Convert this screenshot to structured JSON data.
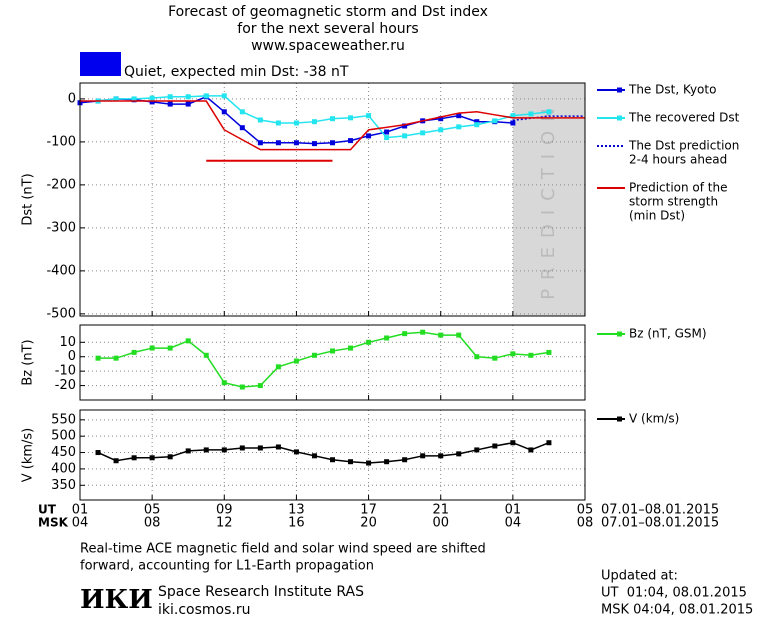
{
  "header": {
    "title": [
      "Forecast of geomagnetic storm and Dst index",
      "for the next several hours",
      "www.spaceweather.ru"
    ]
  },
  "status": {
    "text": "Quiet, expected min Dst: -38 nT",
    "color": "#0000ee"
  },
  "chart_data": [
    {
      "type": "line",
      "ylabel": "Dst (nT)",
      "xlim": [
        0,
        28
      ],
      "ylim": [
        -505,
        37
      ],
      "xticks": [
        {
          "value": 0,
          "label": "01"
        },
        {
          "value": 4,
          "label": "05"
        },
        {
          "value": 8,
          "label": "09"
        },
        {
          "value": 12,
          "label": "13"
        },
        {
          "value": 16,
          "label": "17"
        },
        {
          "value": 20,
          "label": "21"
        },
        {
          "value": 24,
          "label": "01"
        },
        {
          "value": 28,
          "label": "05"
        }
      ],
      "xticks_msk": [
        {
          "value": 0,
          "label": "04"
        },
        {
          "value": 4,
          "label": "08"
        },
        {
          "value": 8,
          "label": "12"
        },
        {
          "value": 12,
          "label": "16"
        },
        {
          "value": 16,
          "label": "20"
        },
        {
          "value": 20,
          "label": "00"
        },
        {
          "value": 24,
          "label": "04"
        },
        {
          "value": 28,
          "label": "08"
        }
      ],
      "yticks": [
        0,
        -100,
        -200,
        -300,
        -400,
        -500
      ],
      "grid": true,
      "prediction_zone": {
        "x": [
          24,
          28
        ],
        "label": "PREDICTION",
        "color": "#d8d8d8"
      },
      "series": [
        {
          "name": [
            "The Dst, Kyoto"
          ],
          "color": "#0000dd",
          "marker": "square",
          "x": [
            0,
            1,
            2,
            3,
            4,
            5,
            6,
            7,
            8,
            9,
            10,
            11,
            12,
            13,
            14,
            15,
            16,
            17,
            18,
            19,
            20,
            21,
            22,
            23,
            24
          ],
          "values": [
            -9,
            -5,
            0,
            -2,
            -7,
            -12,
            -12,
            5,
            -30,
            -67,
            -102,
            -102,
            -102,
            -104,
            -102,
            -97,
            -86,
            -77,
            -63,
            -51,
            -46,
            -39,
            -53,
            -53,
            -56
          ]
        },
        {
          "name": [
            "The recovered Dst"
          ],
          "color": "#22e5f0",
          "marker": "square",
          "x": [
            1,
            2,
            3,
            4,
            5,
            6,
            7,
            8,
            9,
            10,
            11,
            12,
            13,
            14,
            15,
            16,
            17,
            18,
            19,
            20,
            21,
            22,
            23,
            24,
            25,
            26
          ],
          "values": [
            -5,
            0,
            0,
            2,
            5,
            5,
            7,
            7,
            -30,
            -49,
            -56,
            -56,
            -53,
            -46,
            -44,
            -39,
            -90,
            -86,
            -79,
            -72,
            -65,
            -60,
            -51,
            -39,
            -35,
            -30
          ]
        },
        {
          "name": [
            "The Dst prediction",
            "2-4 hours ahead"
          ],
          "color": "#0000cc",
          "dash": "2 2",
          "x": [
            24,
            26,
            28
          ],
          "values": [
            -50,
            -40,
            -40
          ]
        },
        {
          "name": [
            "Prediction of the",
            "storm strength",
            "(min Dst)"
          ],
          "color": "#dd0000",
          "x": [
            0,
            7,
            8,
            10,
            15,
            16,
            18,
            20,
            21,
            22,
            23,
            24,
            28
          ],
          "values": [
            -5,
            -5,
            -72,
            -118,
            -118,
            -72,
            -60,
            -42,
            -33,
            -30,
            -37,
            -44,
            -44
          ],
          "min_line": {
            "x": [
              7,
              14
            ],
            "values": [
              -144,
              -144
            ]
          }
        }
      ]
    },
    {
      "type": "line",
      "ylabel": "Bz (nT)",
      "xlim": [
        0,
        28
      ],
      "ylim": [
        -30,
        22
      ],
      "xticks": [
        0,
        4,
        8,
        12,
        16,
        20,
        24,
        28
      ],
      "yticks": [
        -20,
        -10,
        0,
        10
      ],
      "grid": true,
      "series": [
        {
          "name": [
            "Bz (nT, GSM)"
          ],
          "color": "#22dd22",
          "marker": "square",
          "x": [
            1,
            2,
            3,
            4,
            5,
            6,
            7,
            8,
            9,
            10,
            11,
            12,
            13,
            14,
            15,
            16,
            17,
            18,
            19,
            20,
            21,
            22,
            23,
            24,
            25,
            26
          ],
          "values": [
            -1,
            -1,
            3,
            6,
            6,
            11,
            1,
            -18,
            -21,
            -20,
            -7,
            -3,
            1,
            4,
            6,
            10,
            13,
            16,
            17,
            15,
            15,
            0,
            -1,
            2,
            1,
            3
          ]
        }
      ]
    },
    {
      "type": "line",
      "ylabel": "V (km/s)",
      "xlim": [
        0,
        28
      ],
      "ylim": [
        305,
        580
      ],
      "xticks": [
        0,
        4,
        8,
        12,
        16,
        20,
        24,
        28
      ],
      "yticks": [
        350,
        400,
        450,
        500,
        550
      ],
      "grid": true,
      "series": [
        {
          "name": [
            "V (km/s)"
          ],
          "color": "#000000",
          "marker": "square",
          "x": [
            1,
            2,
            3,
            4,
            5,
            6,
            7,
            8,
            9,
            10,
            11,
            12,
            13,
            14,
            15,
            16,
            17,
            18,
            19,
            20,
            21,
            22,
            23,
            24,
            25,
            26
          ],
          "values": [
            450,
            425,
            434,
            434,
            437,
            455,
            458,
            458,
            464,
            464,
            467,
            452,
            440,
            428,
            422,
            418,
            422,
            428,
            440,
            440,
            446,
            458,
            470,
            480,
            458,
            480
          ]
        }
      ]
    }
  ],
  "axis_rows": {
    "ut": "UT",
    "msk": "MSK",
    "range_ut": "07.01–08.01.2015",
    "range_msk": "07.01–08.01.2015"
  },
  "footer": {
    "notes": [
      "Real-time ACE magnetic field and solar wind speed are shifted",
      "forward, accounting for L1-Earth propagation"
    ],
    "logo": "ИКИ",
    "institute": "Space Research Institute RAS",
    "site": "iki.cosmos.ru",
    "updated": [
      "Updated at:",
      "UT  01:04, 08.01.2015",
      "MSK 04:04, 08.01.2015"
    ]
  }
}
